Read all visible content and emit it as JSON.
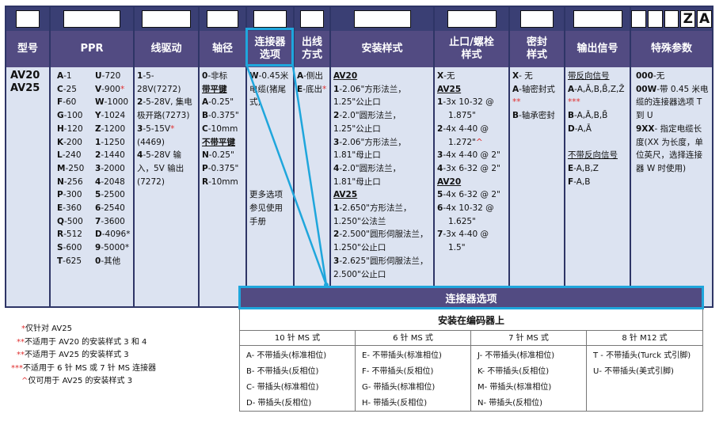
{
  "columns": [
    {
      "header": "型号",
      "boxes": [
        ""
      ]
    },
    {
      "header": "PPR",
      "boxes": [
        ""
      ]
    },
    {
      "header": "线驱动",
      "boxes": [
        ""
      ]
    },
    {
      "header": "轴径",
      "boxes": [
        ""
      ]
    },
    {
      "header": "连接器\n选项",
      "boxes": [
        ""
      ]
    },
    {
      "header": "出线\n方式",
      "boxes": [
        ""
      ]
    },
    {
      "header": "安装样式",
      "boxes": [
        ""
      ]
    },
    {
      "header": "止口/螺栓\n样式",
      "boxes": [
        ""
      ]
    },
    {
      "header": "密封\n样式",
      "boxes": [
        ""
      ]
    },
    {
      "header": "输出信号",
      "boxes": [
        ""
      ]
    },
    {
      "header": "特殊参数",
      "boxes": [
        "",
        "",
        "",
        "Z",
        "A"
      ]
    }
  ],
  "model": [
    "AV20",
    "AV25"
  ],
  "ppr_left": [
    [
      "A",
      "-1"
    ],
    [
      "C",
      "-25"
    ],
    [
      "F",
      "-60"
    ],
    [
      "G",
      "-100"
    ],
    [
      "H",
      "-120"
    ],
    [
      "K",
      "-200"
    ],
    [
      "L",
      "-240"
    ],
    [
      "M",
      "-250"
    ],
    [
      "N",
      "-256"
    ],
    [
      "P",
      "-300"
    ],
    [
      "E",
      "-360"
    ],
    [
      "Q",
      "-500"
    ],
    [
      "R",
      "-512"
    ],
    [
      "S",
      "-600"
    ],
    [
      "T",
      "-625"
    ]
  ],
  "ppr_right": [
    [
      "U",
      "-720",
      ""
    ],
    [
      "V",
      "-900",
      "*"
    ],
    [
      "W",
      "-1000",
      ""
    ],
    [
      "Y",
      "-1024",
      ""
    ],
    [
      "Z",
      "-1200",
      ""
    ],
    [
      "1",
      "-1250",
      ""
    ],
    [
      "2",
      "-1440",
      ""
    ],
    [
      "3",
      "-2000",
      ""
    ],
    [
      "4",
      "-2048",
      ""
    ],
    [
      "5",
      "-2500",
      ""
    ],
    [
      "6",
      "-2540",
      ""
    ],
    [
      "7",
      "-3600",
      ""
    ],
    [
      "D",
      "-4096*",
      ""
    ],
    [
      "9",
      "-5000*",
      ""
    ],
    [
      "0",
      "-其他",
      ""
    ]
  ],
  "line_driver": [
    [
      "1",
      "-5-28V(7272)",
      ""
    ],
    [
      "2",
      "-5-28V, 集电极开路(7273)",
      ""
    ],
    [
      "3",
      "-5-15V",
      "*",
      "(4469)"
    ],
    [
      "4",
      "-5-28V 输入，5V 输出(7272)",
      ""
    ]
  ],
  "shaft": {
    "items0": [
      [
        "0",
        "-非标"
      ]
    ],
    "keyed_label": "带平键",
    "keyed": [
      [
        "A",
        "-0.25\""
      ],
      [
        "B",
        "-0.375\""
      ],
      [
        "C",
        "-10mm"
      ]
    ],
    "unkeyed_label": "不带平键",
    "unkeyed": [
      [
        "N",
        "-0.25\""
      ],
      [
        "P",
        "-0.375\""
      ],
      [
        "R",
        "-10mm"
      ]
    ]
  },
  "connector": {
    "code": "W",
    "text": "-0.45米电缆(猪尾式)",
    "more": "更多选项参见使用手册"
  },
  "exit": [
    [
      "A",
      "-侧出",
      ""
    ],
    [
      "E",
      "-底出",
      "*"
    ]
  ],
  "mount": {
    "av20_label": "AV20",
    "av20": [
      [
        "1",
        "-2.06\"方形法兰，1.25\"公止口"
      ],
      [
        "2",
        "-2.0\"圆形法兰，1.25\"公止口"
      ],
      [
        "3",
        "-2.06\"方形法兰，1.81\"母止口"
      ],
      [
        "4",
        "-2.0\"圆形法兰，1.81\"母止口"
      ]
    ],
    "av25_label": "AV25",
    "av25": [
      [
        "1",
        "-2.650\"方形法兰，1.250\"公法兰"
      ],
      [
        "2",
        "-2.500\"圆形伺服法兰，1.250\"公止口"
      ],
      [
        "3",
        "-2.625\"圆形伺服法兰，2.500\"公止口"
      ]
    ]
  },
  "pilot": {
    "x": [
      "X",
      "-无"
    ],
    "av25_label": "AV25",
    "av25": [
      [
        "1",
        "-3x 10-32 @",
        "1.875\"",
        ""
      ],
      [
        "2",
        "-4x 4-40 @",
        "1.272\"",
        "^"
      ],
      [
        "3",
        "-4x 4-40 @ 2\"",
        "",
        ""
      ],
      [
        "4",
        "-3x 6-32 @ 2\"",
        "",
        ""
      ]
    ],
    "av20_label": "AV20",
    "av20": [
      [
        "5",
        "-4x 6-32 @ 2\"",
        "",
        ""
      ],
      [
        "6",
        "-4x 10-32 @",
        "1.625\"",
        ""
      ],
      [
        "7",
        "-3x 4-40 @",
        "1.5\"",
        ""
      ]
    ]
  },
  "seal": [
    [
      "X",
      "- 无",
      ""
    ],
    [
      "A",
      "-轴密封式",
      "**"
    ],
    [
      "B",
      "-轴承密封",
      ""
    ]
  ],
  "output": {
    "comp_label": "带反向信号",
    "comp": [
      [
        "A",
        "-A,Ā,B,B̄,Z,Z̄",
        "***"
      ],
      [
        "B",
        "-A,Ā,B,B̄",
        ""
      ],
      [
        "D",
        "-A,Ā",
        ""
      ]
    ],
    "noncomp_label": "不带反向信号",
    "noncomp": [
      [
        "E",
        "-A,B,Z"
      ],
      [
        "F",
        "-A,B"
      ]
    ]
  },
  "special": [
    [
      "000",
      "-无"
    ],
    [
      "00W",
      "-带 0.45 米电缆的连接器选项 T 到 U"
    ],
    [
      "9XX",
      "- 指定电缆长度(XX 为长度，单位英尺，选择连接器 W 时使用)"
    ]
  ],
  "connector_band": "连接器选项",
  "connector_table": {
    "title": "安装在编码器上",
    "cols": [
      {
        "header": "10 针 MS 式",
        "items": [
          "A- 不带插头(标准相位)",
          "B- 不带插头(反相位)",
          "C- 带插头(标准相位)",
          "D- 带插头(反相位)"
        ]
      },
      {
        "header": "6 针 MS 式",
        "items": [
          "E- 不带插头(标准相位)",
          "F- 不带插头(反相位)",
          "G- 带插头(标准相位)",
          "H- 带插头(反相位)"
        ]
      },
      {
        "header": "7 针 MS 式",
        "items": [
          "J- 不带插头(标准相位)",
          "K- 不带插头(反相位)",
          "M- 带插头(标准相位)",
          "N- 带插头(反相位)"
        ]
      },
      {
        "header": "8 针 M12 式",
        "items": [
          "T - 不带插头(Turck 式引脚)",
          "U- 不带插头(美式引脚)"
        ]
      }
    ]
  },
  "footnotes": [
    [
      "*",
      "仅针对 AV25"
    ],
    [
      "**",
      "不适用于 AV20 的安装样式 3 和 4"
    ],
    [
      "**",
      "不适用于 AV25 的安装样式 3"
    ],
    [
      "***",
      "不适用于 6 针 MS 或 7 针 MS 连接器"
    ],
    [
      "^",
      "仅可用于 AV25 的安装样式 3"
    ]
  ],
  "colors": {
    "header": "#524b82",
    "top": "#3a3f74",
    "body": "#dce3f1",
    "highlight": "#1fa6dc",
    "mark": "#e03030"
  }
}
